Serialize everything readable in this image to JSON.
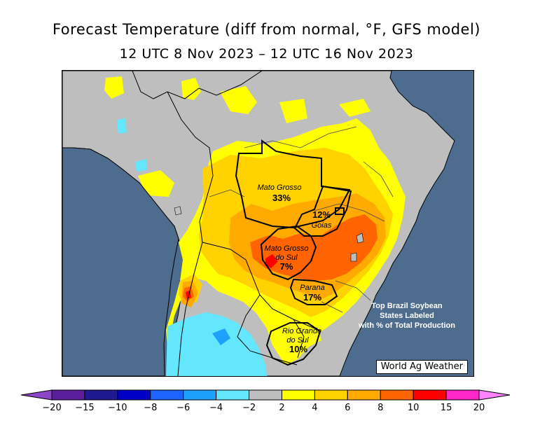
{
  "title": "Forecast Temperature (diff from normal, °F, GFS model)",
  "subtitle": "12 UTC 8 Nov 2023 – 12 UTC 16 Nov 2023",
  "states": [
    {
      "name": "Mato Grosso",
      "pct": "33%"
    },
    {
      "name": "Goias",
      "pct": "12%"
    },
    {
      "name": "Mato Grosso do Sul",
      "line1": "Mato Grosso",
      "line2": "do Sul",
      "pct": "7%"
    },
    {
      "name": "Parana",
      "pct": "17%"
    },
    {
      "name": "Rio Grande do Sul",
      "line1": "Rio Grande",
      "line2": "do Sul",
      "pct": "10%"
    }
  ],
  "note": {
    "lines": [
      "Top Brazil Soybean",
      "States Labeled",
      "with % of Total Production"
    ]
  },
  "credit": "World Ag Weather",
  "legend": {
    "tick_labels": [
      "−20",
      "−15",
      "−10",
      "−8",
      "−6",
      "−4",
      "−2",
      "2",
      "4",
      "6",
      "8",
      "10",
      "15",
      "20"
    ],
    "colors": [
      "#5b1f9c",
      "#1f1a8f",
      "#0000c8",
      "#1e64ff",
      "#1ea0ff",
      "#64e6ff",
      "#bebebe",
      "#ffff00",
      "#ffd200",
      "#ffaa00",
      "#ff6400",
      "#ff0000",
      "#ff28c8"
    ],
    "low_arrow_color": "#8c46c8",
    "high_arrow_color": "#ff82ff"
  },
  "colors": {
    "ocean": "#4e6c8e",
    "land_normal": "#bebebe",
    "warm_2_4": "#ffff00",
    "warm_4_6": "#ffd200",
    "warm_6_8": "#ffaa00",
    "warm_8_10": "#ff6400",
    "hot_10_15": "#ff0000",
    "cool_m2_m4": "#64e6ff",
    "cool_m4_m6": "#1ea0ff"
  }
}
